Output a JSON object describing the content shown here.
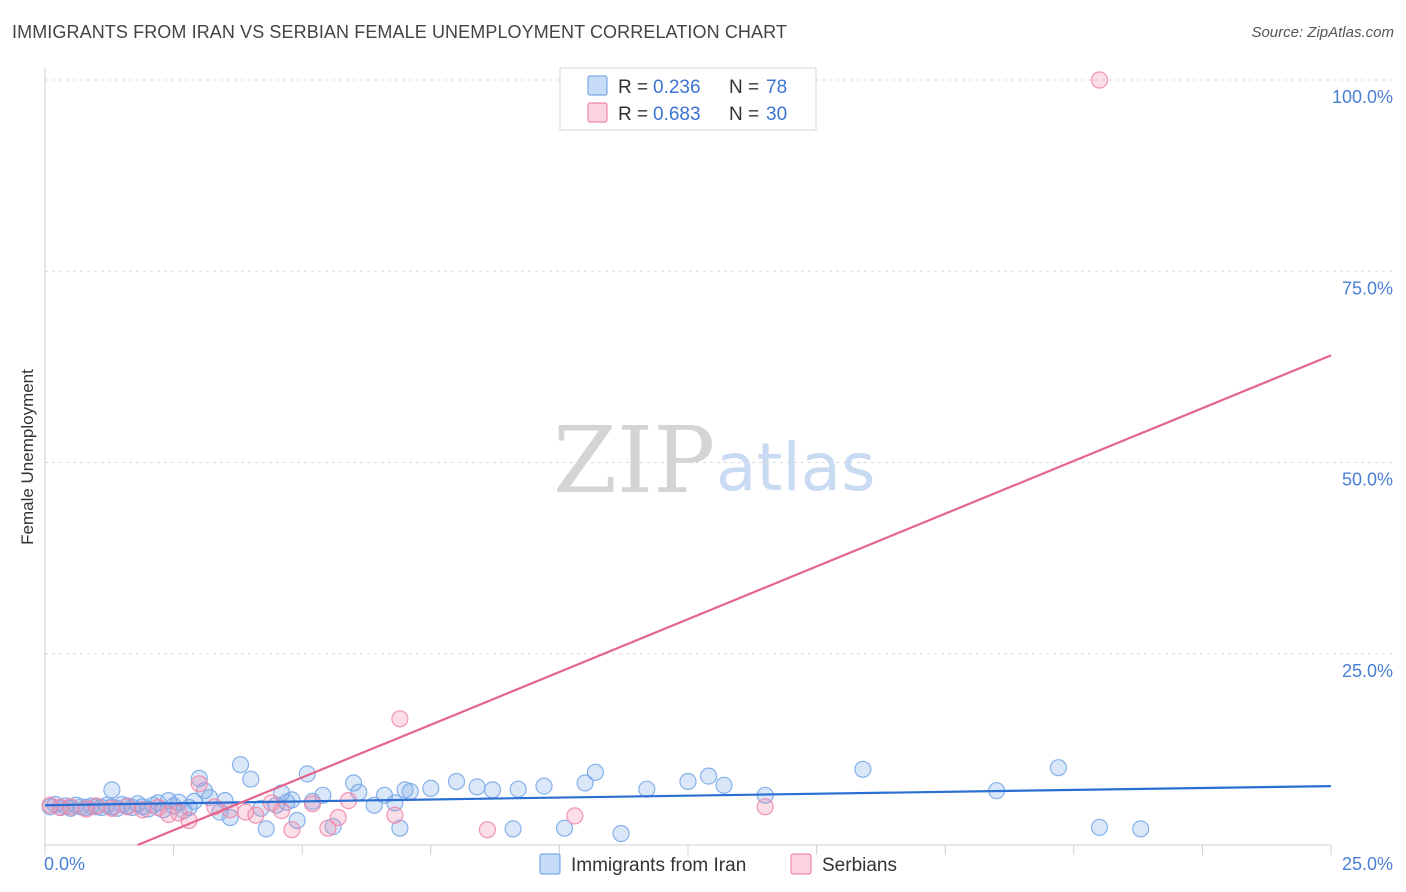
{
  "header": {
    "title": "IMMIGRANTS FROM IRAN VS SERBIAN FEMALE UNEMPLOYMENT CORRELATION CHART",
    "source": "Source: ZipAtlas.com"
  },
  "watermark": {
    "zip": "ZIP",
    "atlas": "atlas"
  },
  "legend": {
    "rows": [
      {
        "r_label": "R = ",
        "r_value": "0.236",
        "n_label": "N = ",
        "n_value": "78",
        "color": "#7aa9e8"
      },
      {
        "r_label": "R = ",
        "r_value": "0.683",
        "n_label": "N = ",
        "n_value": "30",
        "color": "#f08aaa"
      }
    ]
  },
  "bottom_legend": {
    "items": [
      {
        "label": "Immigrants from Iran",
        "color": "#7aa9e8"
      },
      {
        "label": "Serbians",
        "color": "#f08aaa"
      }
    ]
  },
  "chart_data": {
    "type": "scatter",
    "title": "IMMIGRANTS FROM IRAN VS SERBIAN FEMALE UNEMPLOYMENT CORRELATION CHART",
    "xlabel": "",
    "ylabel": "Female Unemployment",
    "xlim": [
      0,
      25
    ],
    "ylim": [
      0,
      100
    ],
    "x_tick_labels": [
      "0.0%",
      "25.0%"
    ],
    "y_ticks": [
      25,
      50,
      75,
      100
    ],
    "y_tick_labels": [
      "25.0%",
      "50.0%",
      "75.0%",
      "100.0%"
    ],
    "grid": true,
    "series": [
      {
        "name": "Immigrants from Iran",
        "color": "#7aa9e8",
        "line_color": "#2a6fd1",
        "trend": {
          "x": [
            0,
            25
          ],
          "y": [
            5.2,
            7.7
          ]
        },
        "points": [
          [
            0.1,
            5.0
          ],
          [
            0.2,
            5.3
          ],
          [
            0.3,
            4.9
          ],
          [
            0.4,
            5.1
          ],
          [
            0.5,
            4.8
          ],
          [
            0.6,
            5.2
          ],
          [
            0.7,
            5.0
          ],
          [
            0.8,
            4.9
          ],
          [
            0.9,
            5.1
          ],
          [
            1.0,
            5.0
          ],
          [
            1.1,
            4.9
          ],
          [
            1.2,
            5.2
          ],
          [
            1.3,
            5.0
          ],
          [
            1.4,
            4.8
          ],
          [
            1.5,
            5.3
          ],
          [
            1.6,
            5.1
          ],
          [
            1.7,
            4.9
          ],
          [
            1.8,
            5.4
          ],
          [
            1.9,
            5.0
          ],
          [
            2.0,
            4.7
          ],
          [
            2.1,
            5.2
          ],
          [
            2.2,
            5.5
          ],
          [
            2.3,
            4.6
          ],
          [
            2.4,
            5.8
          ],
          [
            2.5,
            5.1
          ],
          [
            2.6,
            5.6
          ],
          [
            2.7,
            4.5
          ],
          [
            2.8,
            4.9
          ],
          [
            2.9,
            5.7
          ],
          [
            3.0,
            8.7
          ],
          [
            3.1,
            7.1
          ],
          [
            3.2,
            6.2
          ],
          [
            3.4,
            4.3
          ],
          [
            3.5,
            5.8
          ],
          [
            3.6,
            3.6
          ],
          [
            3.8,
            10.5
          ],
          [
            4.0,
            8.6
          ],
          [
            4.2,
            4.8
          ],
          [
            4.3,
            2.1
          ],
          [
            4.5,
            5.2
          ],
          [
            4.6,
            6.8
          ],
          [
            4.7,
            5.6
          ],
          [
            4.8,
            5.9
          ],
          [
            4.9,
            3.2
          ],
          [
            5.1,
            9.3
          ],
          [
            5.2,
            5.7
          ],
          [
            5.4,
            6.5
          ],
          [
            5.6,
            2.4
          ],
          [
            6.0,
            8.1
          ],
          [
            6.1,
            6.9
          ],
          [
            6.4,
            5.2
          ],
          [
            6.6,
            6.5
          ],
          [
            6.8,
            5.5
          ],
          [
            6.9,
            2.2
          ],
          [
            7.0,
            7.2
          ],
          [
            7.1,
            7.0
          ],
          [
            7.5,
            7.4
          ],
          [
            8.0,
            8.3
          ],
          [
            8.4,
            7.6
          ],
          [
            8.7,
            7.2
          ],
          [
            9.1,
            2.1
          ],
          [
            9.2,
            7.3
          ],
          [
            9.7,
            7.7
          ],
          [
            10.1,
            2.2
          ],
          [
            10.5,
            8.1
          ],
          [
            10.7,
            9.5
          ],
          [
            11.2,
            1.5
          ],
          [
            11.7,
            7.3
          ],
          [
            12.5,
            8.3
          ],
          [
            12.9,
            9.0
          ],
          [
            13.2,
            7.8
          ],
          [
            14.0,
            6.5
          ],
          [
            15.9,
            9.9
          ],
          [
            18.5,
            7.1
          ],
          [
            19.7,
            10.1
          ],
          [
            20.5,
            2.3
          ],
          [
            21.3,
            2.1
          ],
          [
            1.3,
            7.2
          ]
        ]
      },
      {
        "name": "Serbians",
        "color": "#f08aaa",
        "line_color": "#e4648e",
        "trend": {
          "x": [
            1.8,
            25
          ],
          "y": [
            0,
            64
          ]
        },
        "points": [
          [
            0.1,
            5.2
          ],
          [
            0.3,
            4.9
          ],
          [
            0.5,
            5.0
          ],
          [
            0.8,
            4.7
          ],
          [
            1.0,
            5.1
          ],
          [
            1.3,
            4.8
          ],
          [
            1.6,
            5.0
          ],
          [
            1.9,
            4.6
          ],
          [
            2.2,
            4.9
          ],
          [
            2.4,
            4.0
          ],
          [
            2.6,
            4.2
          ],
          [
            2.8,
            3.2
          ],
          [
            3.0,
            8.0
          ],
          [
            3.3,
            5.0
          ],
          [
            3.6,
            4.6
          ],
          [
            3.9,
            4.3
          ],
          [
            4.1,
            3.9
          ],
          [
            4.4,
            5.5
          ],
          [
            4.6,
            4.5
          ],
          [
            4.8,
            2.0
          ],
          [
            5.2,
            5.4
          ],
          [
            5.5,
            2.2
          ],
          [
            5.7,
            3.6
          ],
          [
            5.9,
            5.8
          ],
          [
            6.8,
            3.9
          ],
          [
            6.9,
            16.5
          ],
          [
            8.6,
            2.0
          ],
          [
            10.3,
            3.8
          ],
          [
            14.0,
            5.0
          ],
          [
            20.5,
            100
          ]
        ]
      }
    ]
  }
}
